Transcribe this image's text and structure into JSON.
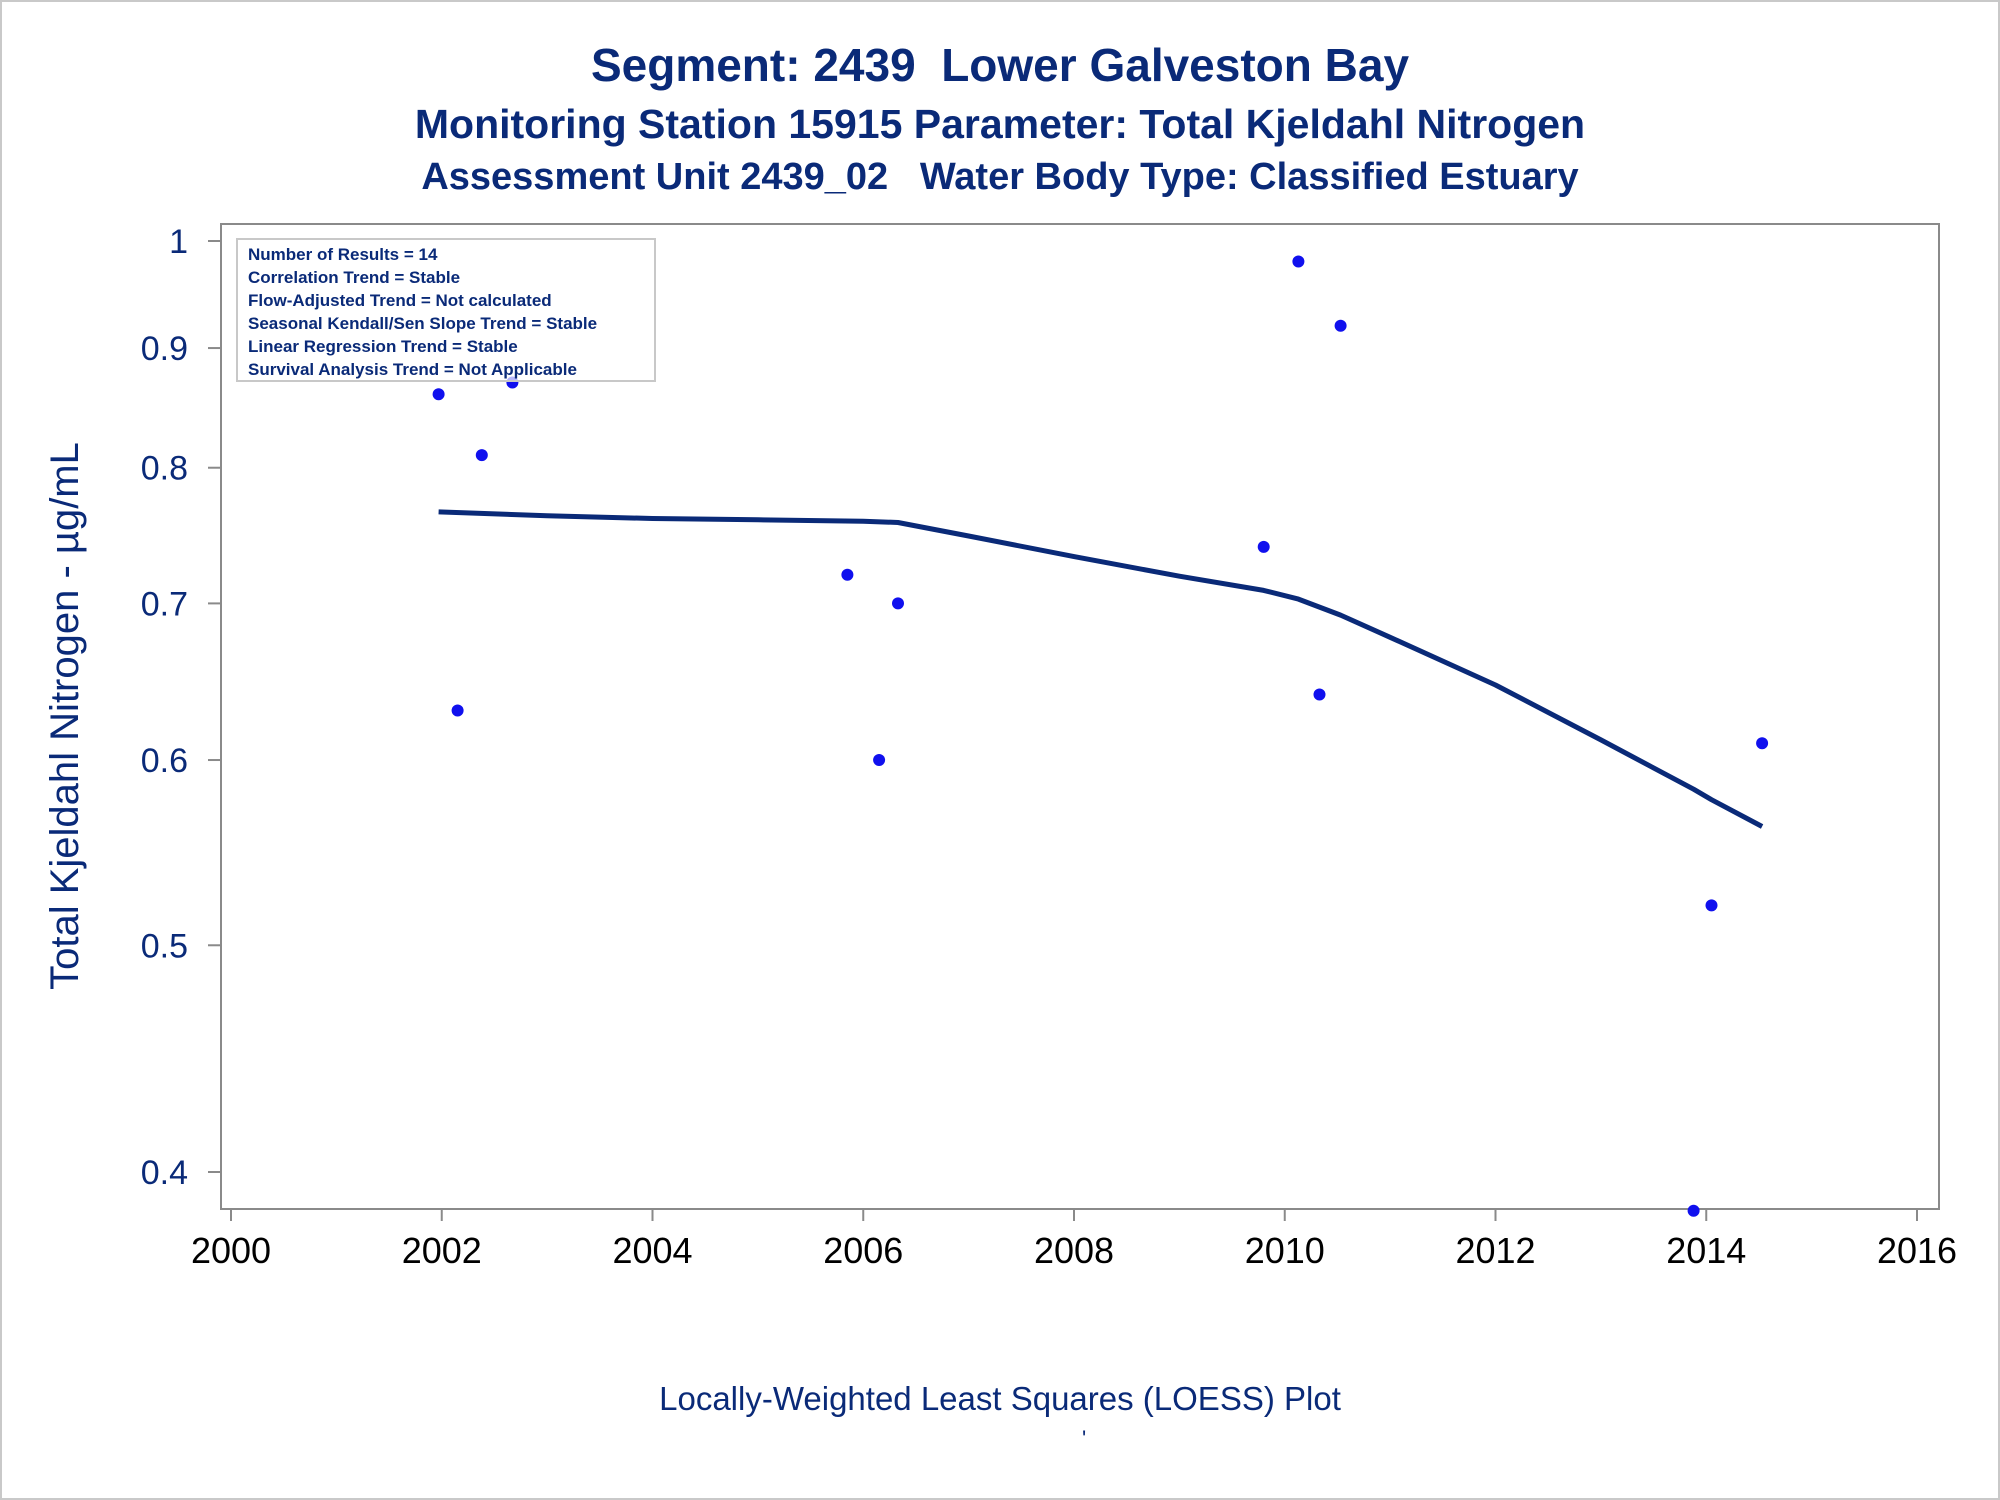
{
  "titles": {
    "line1": "Segment: 2439  Lower Galveston Bay",
    "line2": "Monitoring Station 15915 Parameter: Total Kjeldahl Nitrogen",
    "line3": "Assessment Unit 2439_02   Water Body Type: Classified Estuary"
  },
  "stats": [
    "Number of Results = 14",
    "Correlation Trend = Stable",
    "Flow-Adjusted Trend = Not calculated",
    "Seasonal Kendall/Sen Slope Trend = Stable",
    "Linear Regression Trend = Stable",
    "Survival Analysis Trend = Not Applicable"
  ],
  "footnote": "Locally-Weighted Least Squares (LOESS) Plot",
  "footmark": "'",
  "chart_data": {
    "type": "scatter",
    "ylabel": "Total Kjeldahl Nitrogen -  µg/mL",
    "xlabel": "",
    "y_scale": "log",
    "xlim": [
      2000,
      2016
    ],
    "ylim": [
      0.39,
      1.0
    ],
    "x_ticks": [
      2000,
      2002,
      2004,
      2006,
      2008,
      2010,
      2012,
      2014,
      2016
    ],
    "y_ticks": [
      0.4,
      0.5,
      0.6,
      0.7,
      0.8,
      0.9,
      1
    ],
    "y_tick_labels": [
      "0.4",
      "0.5",
      "0.6",
      "0.7",
      "0.8",
      "0.9",
      "1"
    ],
    "grid": false,
    "points": [
      {
        "x": 2001.97,
        "y": 0.86
      },
      {
        "x": 2002.15,
        "y": 0.63
      },
      {
        "x": 2002.38,
        "y": 0.81
      },
      {
        "x": 2002.67,
        "y": 0.87
      },
      {
        "x": 2005.85,
        "y": 0.72
      },
      {
        "x": 2006.15,
        "y": 0.6
      },
      {
        "x": 2006.33,
        "y": 0.7
      },
      {
        "x": 2009.8,
        "y": 0.74
      },
      {
        "x": 2010.13,
        "y": 0.98
      },
      {
        "x": 2010.33,
        "y": 0.64
      },
      {
        "x": 2010.53,
        "y": 0.92
      },
      {
        "x": 2013.88,
        "y": 0.385
      },
      {
        "x": 2014.05,
        "y": 0.52
      },
      {
        "x": 2014.53,
        "y": 0.61
      }
    ],
    "loess_curve": [
      {
        "x": 2001.97,
        "y": 0.766
      },
      {
        "x": 2003.0,
        "y": 0.763
      },
      {
        "x": 2004.0,
        "y": 0.761
      },
      {
        "x": 2005.0,
        "y": 0.76
      },
      {
        "x": 2006.0,
        "y": 0.759
      },
      {
        "x": 2006.33,
        "y": 0.758
      },
      {
        "x": 2007.0,
        "y": 0.748
      },
      {
        "x": 2008.0,
        "y": 0.733
      },
      {
        "x": 2009.0,
        "y": 0.719
      },
      {
        "x": 2009.8,
        "y": 0.709
      },
      {
        "x": 2010.13,
        "y": 0.703
      },
      {
        "x": 2010.53,
        "y": 0.692
      },
      {
        "x": 2011.0,
        "y": 0.677
      },
      {
        "x": 2012.0,
        "y": 0.646
      },
      {
        "x": 2013.0,
        "y": 0.612
      },
      {
        "x": 2013.88,
        "y": 0.583
      },
      {
        "x": 2014.05,
        "y": 0.577
      },
      {
        "x": 2014.53,
        "y": 0.562
      }
    ],
    "colors": {
      "points": "#1010ee",
      "curve": "#0a2a78",
      "text": "#0a2a78",
      "axis": "#8a8a8a"
    }
  }
}
